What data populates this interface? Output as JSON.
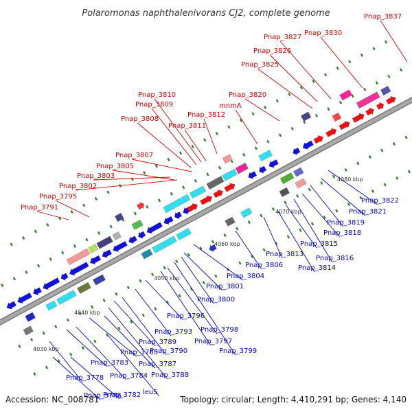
{
  "title": "Polaromonas naphthalenivorans CJ2, complete genome",
  "footer": {
    "accession": "Accession: NC_008781",
    "stats": "Topology: circular; Length: 4,410,291 bp; Genes: 4,140"
  },
  "colors": {
    "forward_label": "#cc0000",
    "reverse_label": "#0000cc",
    "forward_strand": "#ee1111",
    "reverse_strand": "#1111dd",
    "backbone": "#a8a8a8",
    "tick": "#2f7f2f"
  },
  "kbp_markers": [
    "4030 kbp",
    "4040 kbp",
    "4050 kbp",
    "4060 kbp",
    "4070 kbp",
    "4080 kbp"
  ],
  "labels_above": [
    "Pnap_3791",
    "Pnap_3795",
    "Pnap_3802",
    "Pnap_3803",
    "Pnap_3805",
    "Pnap_3807",
    "Pnap_3808",
    "Pnap_3809",
    "Pnap_3810",
    "Pnap_3811",
    "Pnap_3812",
    "mnmA",
    "Pnap_3820",
    "Pnap_3825",
    "Pnap_3826",
    "Pnap_3827",
    "Pnap_3830",
    "Pnap_3837"
  ],
  "labels_below": [
    "Pnap_3776",
    "Pnap_3778",
    "Pnap_3782",
    "leuS",
    "Pnap_3783",
    "Pnap_3784",
    "Pnap_3785",
    "Pnap_3787",
    "Pnap_3788",
    "Pnap_3789",
    "Pnap_3790",
    "Pnap_3793",
    "Pnap_3796",
    "Pnap_3797",
    "Pnap_3798",
    "Pnap_3799",
    "Pnap_3800",
    "Pnap_3801",
    "Pnap_3804",
    "Pnap_3806",
    "Pnap_3813",
    "Pnap_3814",
    "Pnap_3815",
    "Pnap_3816",
    "Pnap_3818",
    "Pnap_3819",
    "Pnap_3821",
    "Pnap_3822"
  ]
}
